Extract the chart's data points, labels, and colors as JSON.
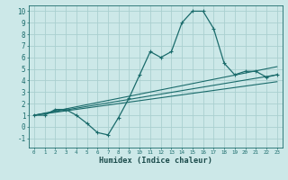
{
  "xlabel": "Humidex (Indice chaleur)",
  "bg_color": "#cce8e8",
  "grid_color": "#aacfcf",
  "line_color": "#1a6b6b",
  "xlim": [
    -0.5,
    23.5
  ],
  "ylim": [
    -1.8,
    10.5
  ],
  "xticks": [
    0,
    1,
    2,
    3,
    4,
    5,
    6,
    7,
    8,
    9,
    10,
    11,
    12,
    13,
    14,
    15,
    16,
    17,
    18,
    19,
    20,
    21,
    22,
    23
  ],
  "yticks": [
    -1,
    0,
    1,
    2,
    3,
    4,
    5,
    6,
    7,
    8,
    9,
    10
  ],
  "curve1_x": [
    0,
    1,
    2,
    3,
    4,
    5,
    6,
    7,
    8,
    9,
    10,
    11,
    12,
    13,
    14,
    15,
    16,
    17,
    18,
    19,
    20,
    21,
    22,
    23
  ],
  "curve1_y": [
    1,
    1,
    1.5,
    1.5,
    1,
    0.3,
    -0.5,
    -0.7,
    0.8,
    2.5,
    4.5,
    6.5,
    6.0,
    6.5,
    9.0,
    10.0,
    10.0,
    8.5,
    5.5,
    4.5,
    4.8,
    4.8,
    4.3,
    4.5
  ],
  "line1_x": [
    0,
    23
  ],
  "line1_y": [
    1.0,
    5.2
  ],
  "line2_x": [
    0,
    23
  ],
  "line2_y": [
    1.0,
    4.5
  ],
  "line3_x": [
    0,
    23
  ],
  "line3_y": [
    1.0,
    3.9
  ]
}
